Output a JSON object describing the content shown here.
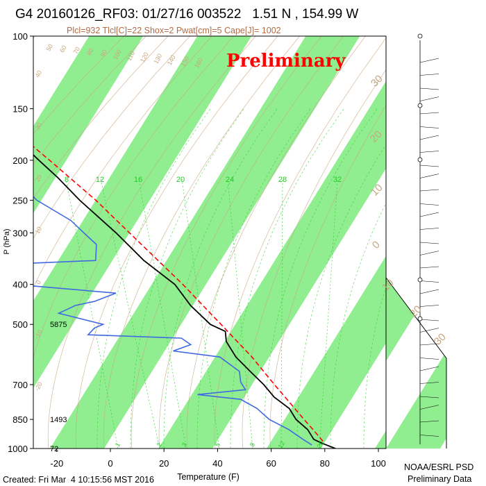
{
  "header": {
    "title": "G4 20160126_RF03: 01/27/16 003522   1.51 N , 154.99 W",
    "subtitle": "Plcl=932 Tlcl[C]=22 Shox=2 Pwat[cm]=5 Cape[J]= 1002"
  },
  "footer": {
    "created": "Created: Fri Mar  4 10:15:56 MST 2016",
    "credit_line1": "NOAA/ESRL PSD",
    "credit_line2": "Preliminary Data"
  },
  "colors": {
    "band_green": "#90ee90",
    "temperature": "#000000",
    "dewpoint": "#4169e1",
    "parcel": "#ff0000",
    "adiabat": "#c8a57f",
    "mixing_ratio": "#22cc22",
    "watermark": "#ff0000"
  },
  "chart_data": {
    "type": "skew-t",
    "watermark": "Preliminary",
    "xlabel": "Temperature (F)",
    "ylabel": "P (hPa)",
    "x_ticks": [
      -20,
      0,
      20,
      40,
      60,
      80,
      100
    ],
    "pressure_ticks": [
      100,
      150,
      200,
      250,
      300,
      400,
      500,
      700,
      850,
      1000
    ],
    "height_labels": [
      {
        "pressure": 500,
        "label": "5875"
      },
      {
        "pressure": 850,
        "label": "1493"
      },
      {
        "pressure": 1000,
        "label": "72"
      }
    ],
    "mixing_ratio_labels": [
      "8",
      "12",
      "16",
      "20",
      "24",
      "28",
      "32"
    ],
    "mixing_ratio_bottom_labels": [
      "1",
      "2",
      "3",
      "5",
      "8",
      "12",
      "20"
    ],
    "adiabat_labels_top": [
      "50",
      "60",
      "70",
      "80",
      "90",
      "100",
      "110",
      "120",
      "130",
      "140",
      "150",
      "160"
    ],
    "adiabat_labels_left": [
      "40",
      "30",
      "20",
      "10",
      "0",
      "-10",
      "-20"
    ],
    "wetbulb_labels_right": [
      "30",
      "20",
      "10",
      "0",
      "10",
      "20",
      "30"
    ],
    "temperature_profile": [
      {
        "p": 1000,
        "t": 84
      },
      {
        "p": 970,
        "t": 80
      },
      {
        "p": 950,
        "t": 78
      },
      {
        "p": 900,
        "t": 78
      },
      {
        "p": 850,
        "t": 76
      },
      {
        "p": 800,
        "t": 76
      },
      {
        "p": 750,
        "t": 73
      },
      {
        "p": 700,
        "t": 72
      },
      {
        "p": 650,
        "t": 70
      },
      {
        "p": 600,
        "t": 68
      },
      {
        "p": 550,
        "t": 68
      },
      {
        "p": 520,
        "t": 70
      },
      {
        "p": 500,
        "t": 66
      },
      {
        "p": 450,
        "t": 63
      },
      {
        "p": 400,
        "t": 62
      },
      {
        "p": 350,
        "t": 56
      },
      {
        "p": 300,
        "t": 52
      },
      {
        "p": 250,
        "t": 46
      },
      {
        "p": 220,
        "t": 43
      },
      {
        "p": 200,
        "t": 40
      },
      {
        "p": 180,
        "t": 37
      }
    ],
    "dewpoint_profile": [
      {
        "p": 980,
        "t": 76
      },
      {
        "p": 950,
        "t": 74
      },
      {
        "p": 900,
        "t": 71
      },
      {
        "p": 850,
        "t": 66
      },
      {
        "p": 800,
        "t": 64
      },
      {
        "p": 760,
        "t": 60
      },
      {
        "p": 740,
        "t": 45
      },
      {
        "p": 720,
        "t": 64
      },
      {
        "p": 690,
        "t": 64
      },
      {
        "p": 650,
        "t": 66
      },
      {
        "p": 600,
        "t": 62
      },
      {
        "p": 580,
        "t": 46
      },
      {
        "p": 560,
        "t": 54
      },
      {
        "p": 540,
        "t": 52
      },
      {
        "p": 530,
        "t": 18
      },
      {
        "p": 510,
        "t": 22
      },
      {
        "p": 500,
        "t": 26
      },
      {
        "p": 470,
        "t": 12
      },
      {
        "p": 460,
        "t": 16
      },
      {
        "p": 450,
        "t": 20
      },
      {
        "p": 440,
        "t": 28
      },
      {
        "p": 420,
        "t": 38
      },
      {
        "p": 400,
        "t": 2
      },
      {
        "p": 360,
        "t": -8
      },
      {
        "p": 350,
        "t": 38
      },
      {
        "p": 320,
        "t": 42
      },
      {
        "p": 300,
        "t": 40
      },
      {
        "p": 280,
        "t": 38
      },
      {
        "p": 250,
        "t": 30
      },
      {
        "p": 230,
        "t": 28
      },
      {
        "p": 210,
        "t": 30
      },
      {
        "p": 200,
        "t": 28
      }
    ],
    "parcel_profile": [
      {
        "p": 960,
        "t": 81
      },
      {
        "p": 900,
        "t": 80
      },
      {
        "p": 850,
        "t": 79
      },
      {
        "p": 700,
        "t": 76
      },
      {
        "p": 600,
        "t": 74
      },
      {
        "p": 500,
        "t": 70
      },
      {
        "p": 400,
        "t": 65
      },
      {
        "p": 300,
        "t": 57
      },
      {
        "p": 250,
        "t": 52
      },
      {
        "p": 200,
        "t": 44
      },
      {
        "p": 180,
        "t": 40
      }
    ]
  }
}
